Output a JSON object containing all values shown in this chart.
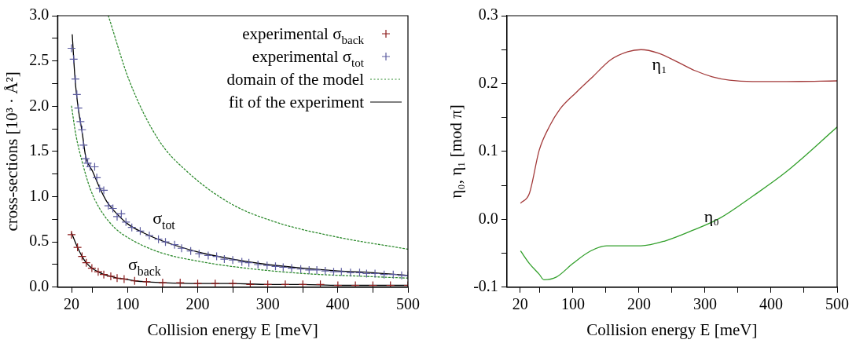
{
  "chart_data": [
    {
      "type": "scatter",
      "xlabel": "Collision energy E [meV]",
      "ylabel": "cross-sections [10³ · Å²]",
      "xlim": [
        0,
        500
      ],
      "xticks": [
        20,
        {
          "value": 50,
          "label": null
        },
        100,
        {
          "value": 150,
          "label": null
        },
        200,
        {
          "value": 250,
          "label": null
        },
        300,
        {
          "value": 350,
          "label": null
        },
        400,
        {
          "value": 450,
          "label": null
        },
        500
      ],
      "ylim": [
        0,
        3
      ],
      "yticks": [
        {
          "value": 0,
          "label": "0.0"
        },
        {
          "value": 0.25,
          "label": null
        },
        {
          "value": 0.5,
          "label": "0.5"
        },
        {
          "value": 0.75,
          "label": null
        },
        {
          "value": 1,
          "label": "1.0"
        },
        {
          "value": 1.25,
          "label": null
        },
        {
          "value": 1.5,
          "label": "1.5"
        },
        {
          "value": 1.75,
          "label": null
        },
        {
          "value": 2,
          "label": "2.0"
        },
        {
          "value": 2.25,
          "label": null
        },
        {
          "value": 2.5,
          "label": "2.5"
        },
        {
          "value": 2.75,
          "label": null
        },
        {
          "value": 3,
          "label": "3.0"
        }
      ],
      "legend": "top right",
      "annotations": [
        {
          "text": "σ$_{tot}$",
          "x": 120,
          "y": 0.61
        },
        {
          "text": "σ$_{back}$",
          "x": 85,
          "y": 0.1
        }
      ],
      "series": [
        {
          "name": "experimental σ$_{back}$",
          "type": "scatter",
          "marker": "cross",
          "color": "#8b1a1a",
          "x": [
            20,
            28.5,
            35,
            41,
            49,
            58,
            66,
            76,
            85,
            95,
            110,
            127,
            150,
            175,
            200,
            225,
            250,
            275,
            300,
            325,
            350,
            375,
            400,
            425,
            450,
            475,
            500
          ],
          "values": [
            0.58,
            0.44,
            0.34,
            0.27,
            0.21,
            0.17,
            0.14,
            0.12,
            0.1,
            0.09,
            0.07,
            0.06,
            0.05,
            0.05,
            0.04,
            0.04,
            0.04,
            0.03,
            0.03,
            0.03,
            0.03,
            0.03,
            0.02,
            0.02,
            0.02,
            0.02,
            0.02
          ]
        },
        {
          "name": "experimental σ$_{tot}$",
          "type": "scatter",
          "marker": "cross",
          "color": "#5c5ca0",
          "x": [
            20,
            23,
            25.5,
            27.6,
            29.7,
            32.7,
            35,
            37,
            40,
            43,
            46.5,
            53,
            56,
            60,
            66,
            72.5,
            79,
            85,
            91,
            97.6,
            106,
            118,
            131,
            144,
            154,
            167,
            177,
            190,
            202,
            215,
            227,
            238,
            250,
            263,
            273,
            286,
            299,
            311,
            322,
            334,
            347,
            359,
            370,
            382,
            394,
            405,
            418,
            431,
            441,
            453,
            466,
            479,
            491,
            500
          ],
          "values": [
            2.64,
            2.52,
            2.3,
            2.13,
            1.98,
            1.83,
            1.74,
            1.57,
            1.42,
            1.37,
            1.33,
            1.33,
            1.21,
            1.09,
            1.07,
            0.9,
            0.87,
            0.78,
            0.81,
            0.72,
            0.66,
            0.62,
            0.57,
            0.53,
            0.5,
            0.47,
            0.43,
            0.4,
            0.37,
            0.35,
            0.34,
            0.31,
            0.3,
            0.28,
            0.27,
            0.25,
            0.24,
            0.23,
            0.22,
            0.21,
            0.2,
            0.19,
            0.19,
            0.18,
            0.17,
            0.17,
            0.16,
            0.16,
            0.15,
            0.15,
            0.14,
            0.14,
            0.13,
            0.13
          ]
        },
        {
          "name": "domain of the model",
          "type": "line",
          "marker": "none",
          "line_style": "dotted",
          "color": "#2e8b2e",
          "x": [
            72.5,
            102,
            144,
            186,
            248,
            311,
            395,
            500
          ],
          "values": [
            3,
            2.29,
            1.63,
            1.27,
            0.92,
            0.72,
            0.56,
            0.42
          ]
        },
        {
          "type": "line",
          "marker": "none",
          "line_style": "dotted",
          "color": "#2e8b2e",
          "x": [
            20,
            26,
            35,
            47,
            60,
            81,
            102,
            144,
            206,
            269,
            353,
            437,
            500
          ],
          "values": [
            2,
            1.69,
            1.39,
            1.08,
            0.87,
            0.66,
            0.54,
            0.39,
            0.28,
            0.21,
            0.15,
            0.12,
            0.1
          ]
        },
        {
          "name": "fit of the experiment",
          "type": "line",
          "marker": "none",
          "line_style": "solid",
          "color": "#000000",
          "x": [
            21,
            25,
            30,
            35,
            40,
            50,
            60,
            70,
            80,
            100,
            120,
            150,
            200,
            250,
            300,
            350,
            400,
            450,
            500
          ],
          "values": [
            2.79,
            2.3,
            1.95,
            1.72,
            1.45,
            1.28,
            1.1,
            0.95,
            0.85,
            0.7,
            0.61,
            0.51,
            0.39,
            0.31,
            0.25,
            0.21,
            0.18,
            0.16,
            0.13
          ]
        },
        {
          "type": "line",
          "marker": "none",
          "line_style": "solid",
          "color": "#000000",
          "x": [
            20,
            28.5,
            35,
            41,
            49,
            58,
            66,
            76,
            85,
            95,
            110,
            127,
            150,
            200,
            250,
            300,
            350,
            400,
            450,
            500
          ],
          "values": [
            0.6,
            0.44,
            0.34,
            0.27,
            0.21,
            0.17,
            0.14,
            0.12,
            0.1,
            0.09,
            0.07,
            0.06,
            0.05,
            0.04,
            0.04,
            0.03,
            0.03,
            0.02,
            0.02,
            0.02
          ]
        }
      ]
    },
    {
      "type": "line",
      "xlabel": "Collision energy E [meV]",
      "ylabel": "η₀, η₁ [mod π]",
      "xlim": [
        0,
        500
      ],
      "xticks": [
        20,
        {
          "value": 50,
          "label": null
        },
        100,
        {
          "value": 150,
          "label": null
        },
        200,
        {
          "value": 250,
          "label": null
        },
        300,
        {
          "value": 350,
          "label": null
        },
        400,
        {
          "value": 450,
          "label": null
        },
        500
      ],
      "ylim": [
        -0.1,
        0.3
      ],
      "yticks": [
        -0.1,
        {
          "value": -0.05,
          "label": null
        },
        {
          "value": 0,
          "label": "0.0"
        },
        {
          "value": 0.05,
          "label": null
        },
        0.1,
        {
          "value": 0.15,
          "label": null
        },
        0.2,
        {
          "value": 0.25,
          "label": null
        },
        0.3
      ],
      "annotations": [
        {
          "text": "η₁",
          "x": 203,
          "y": 0.25
        },
        {
          "text": "η₀",
          "x": 282,
          "y": -0.016
        }
      ],
      "series": [
        {
          "color": "#a33a3a",
          "x": [
            21,
            34,
            49,
            65,
            80,
            105,
            131,
            157,
            183,
            203,
            229,
            260,
            285,
            311,
            337,
            372,
            423,
            500
          ],
          "values": [
            0.024,
            0.038,
            0.102,
            0.138,
            0.162,
            0.187,
            0.211,
            0.235,
            0.247,
            0.25,
            0.245,
            0.231,
            0.219,
            0.21,
            0.205,
            0.203,
            0.203,
            0.204
          ]
        },
        {
          "color": "#33a02c",
          "x": [
            21,
            34,
            49,
            56,
            75,
            100,
            126,
            151,
            203,
            239,
            282,
            323,
            372,
            423,
            500
          ],
          "values": [
            -0.047,
            -0.065,
            -0.081,
            -0.089,
            -0.085,
            -0.065,
            -0.047,
            -0.039,
            -0.039,
            -0.032,
            -0.016,
            0.002,
            0.034,
            0.07,
            0.136
          ]
        }
      ]
    }
  ]
}
